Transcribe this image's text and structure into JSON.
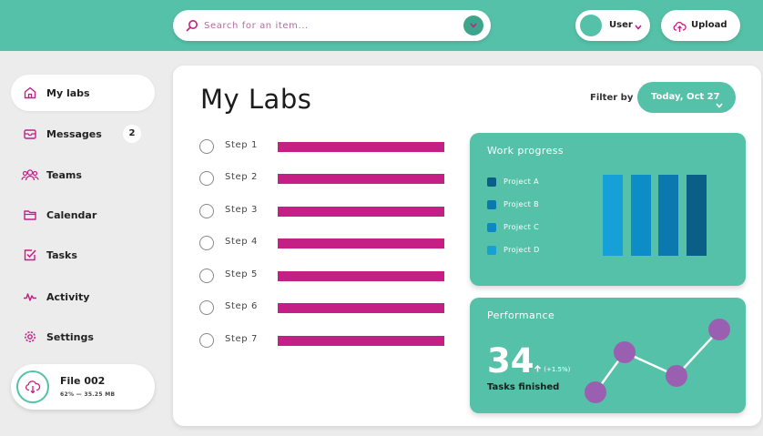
{
  "search": {
    "placeholder": "Search for an item..."
  },
  "user": {
    "label": "User"
  },
  "upload": {
    "label": "Upload"
  },
  "sidebar": {
    "items": [
      {
        "label": "My labs",
        "icon": "home-icon",
        "active": true
      },
      {
        "label": "Messages",
        "icon": "mail-icon",
        "badge": "2"
      },
      {
        "label": "Teams",
        "icon": "team-icon"
      },
      {
        "label": "Calendar",
        "icon": "folder-icon"
      },
      {
        "label": "Tasks",
        "icon": "checkbox-icon"
      },
      {
        "label": "Activity",
        "icon": "activity-icon"
      },
      {
        "label": "Settings",
        "icon": "gear-icon"
      }
    ]
  },
  "file": {
    "name": "File 002",
    "meta": "62%  —  35.25 MB",
    "icon": "cloud-download-icon"
  },
  "main": {
    "title": "My Labs",
    "filter_label": "Filter by",
    "date_label": "Today, Oct 27",
    "steps": [
      {
        "label": "Step 1"
      },
      {
        "label": "Step 2"
      },
      {
        "label": "Step 3"
      },
      {
        "label": "Step 4"
      },
      {
        "label": "Step 5"
      },
      {
        "label": "Step 6"
      },
      {
        "label": "Step 7"
      }
    ]
  },
  "work_progress": {
    "title": "Work progress",
    "projects": [
      {
        "label": "Project A",
        "color": "#0a5f86"
      },
      {
        "label": "Project B",
        "color": "#0b79ae"
      },
      {
        "label": "Project C",
        "color": "#0e88c4"
      },
      {
        "label": "Project D",
        "color": "#179fd6"
      }
    ]
  },
  "performance": {
    "title": "Performance",
    "value": "34",
    "delta": "(+1.5%)",
    "subtitle": "Tasks finished"
  },
  "colors": {
    "accent": "#55c1a9",
    "accent_dark": "#3ea58d",
    "magenta": "#c41f85",
    "purple_dot": "#9b5fb2"
  }
}
